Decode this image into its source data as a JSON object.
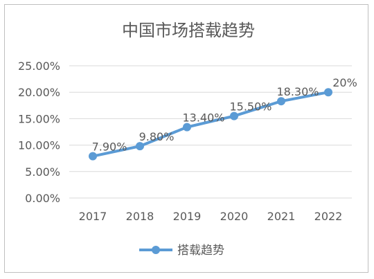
{
  "chart_data": {
    "type": "line",
    "title": "中国市场搭载趋势",
    "categories": [
      "2017",
      "2018",
      "2019",
      "2020",
      "2021",
      "2022"
    ],
    "series": [
      {
        "name": "搭载趋势",
        "values": [
          7.9,
          9.8,
          13.4,
          15.5,
          18.3,
          20
        ],
        "labels": [
          "7.90%",
          "9.80%",
          "13.40%",
          "15.50%",
          "18.30%",
          "20%"
        ],
        "color": "#5b9bd5"
      }
    ],
    "ylim": [
      0,
      25
    ],
    "y_ticks": [
      "0.00%",
      "5.00%",
      "10.00%",
      "15.00%",
      "20.00%",
      "25.00%"
    ],
    "grid": true,
    "legend": "bottom"
  }
}
